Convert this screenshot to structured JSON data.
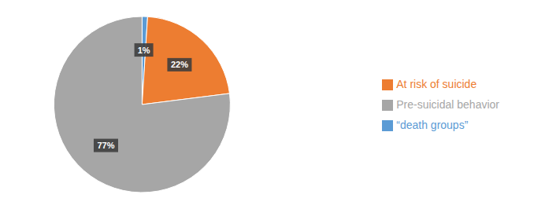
{
  "chart_data": {
    "type": "pie",
    "categories": [
      "“death groups”",
      "At risk of suicide",
      "Pre-suicidal behavior"
    ],
    "values": [
      1,
      22,
      77
    ],
    "value_labels": [
      "1%",
      "22%",
      "77%"
    ],
    "colors": [
      "#5B9BD5",
      "#ED7D31",
      "#A6A6A6"
    ],
    "data_labels": true,
    "legend": "right"
  }
}
